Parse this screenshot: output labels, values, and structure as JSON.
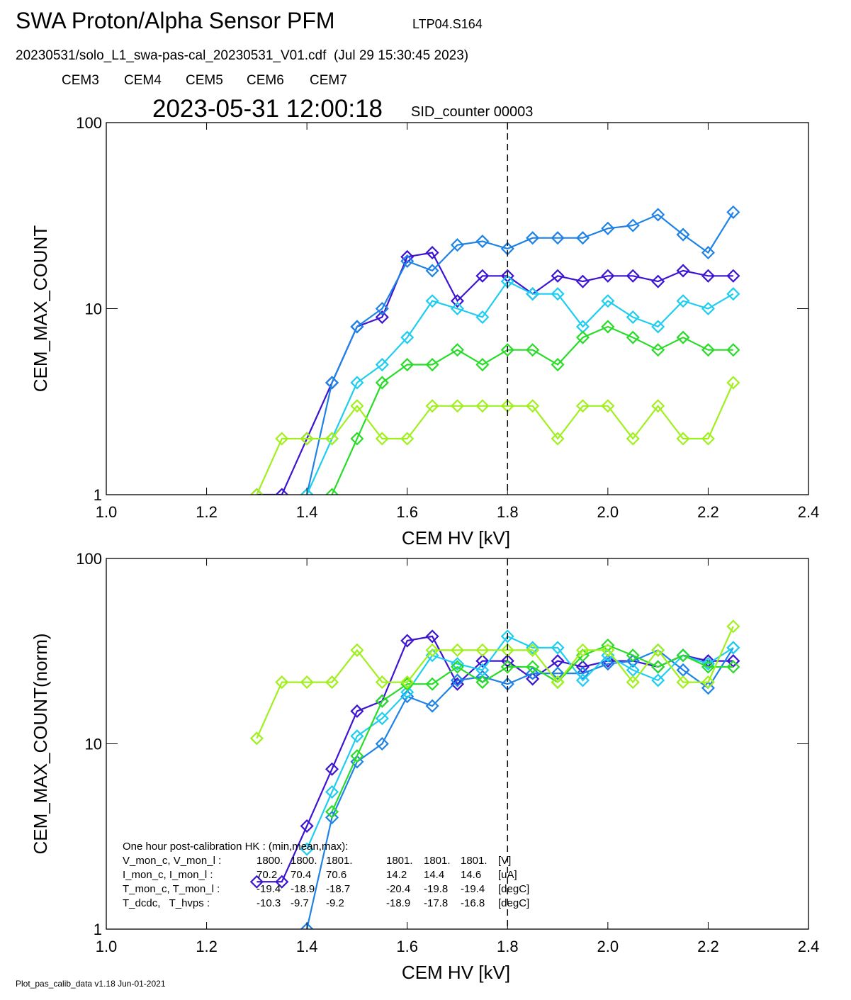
{
  "header": {
    "title": "SWA Proton/Alpha Sensor PFM",
    "test_id": "LTP04.S164",
    "file": "20230531/solo_L1_swa-pas-cal_20230531_V01.cdf  (Jul 29 15:30:45 2023)",
    "timestamp": "2023-05-31 12:00:18",
    "sid": "SID_counter 00003"
  },
  "footer": "Plot_pas_calib_data v1.18 Jun-01-2021",
  "hk_table": {
    "heading": "One hour post-calibration HK : (min,mean,max):",
    "rows": [
      [
        "V_mon_c, V_mon_l :",
        "1800.",
        "1800.",
        "1801.",
        "1801.",
        "1801.",
        "1801.",
        "[V]"
      ],
      [
        "I_mon_c, I_mon_l :",
        "70.2",
        "70.4",
        "70.6",
        "14.2",
        "14.4",
        "14.6",
        "[uA]"
      ],
      [
        "T_mon_c, T_mon_l :",
        "-19.4",
        "-18.9",
        "-18.7",
        "-20.4",
        "-19.8",
        "-19.4",
        "[degC]"
      ],
      [
        "T_dcdc,   T_hvps :",
        "-10.3",
        "-9.7",
        "-9.2",
        "-18.9",
        "-17.8",
        "-16.8",
        "[degC]"
      ]
    ]
  },
  "chart_data": [
    {
      "type": "line",
      "x_label": "CEM HV [kV]",
      "y_label": "CEM_MAX_COUNT",
      "log_y": true,
      "marker": "diamond",
      "vline": 1.8,
      "xlim": [
        1.0,
        2.4
      ],
      "ylim": [
        1,
        100
      ],
      "xticks": [
        {
          "value": 1.0,
          "label": "1.0"
        },
        {
          "value": 1.2,
          "label": "1.2"
        },
        {
          "value": 1.4,
          "label": "1.4"
        },
        {
          "value": 1.6,
          "label": "1.6"
        },
        {
          "value": 1.8,
          "label": "1.8"
        },
        {
          "value": 2.0,
          "label": "2.0"
        },
        {
          "value": 2.2,
          "label": "2.2"
        },
        {
          "value": 2.4,
          "label": "2.4"
        }
      ],
      "yticks": [
        1,
        10,
        100
      ],
      "x": [
        1.3,
        1.35,
        1.4,
        1.45,
        1.5,
        1.55,
        1.6,
        1.65,
        1.7,
        1.75,
        1.8,
        1.85,
        1.9,
        1.95,
        2.0,
        2.05,
        2.1,
        2.15,
        2.2,
        2.25
      ],
      "series": [
        {
          "name": "CEM3",
          "color": "#3c14d2",
          "values": [
            1,
            1,
            2,
            4,
            8,
            9,
            19,
            20,
            11,
            15,
            15,
            12,
            15,
            14,
            15,
            15,
            14,
            16,
            15,
            15
          ]
        },
        {
          "name": "CEM4",
          "color": "#1e82e6",
          "values": [
            null,
            null,
            1,
            4,
            8,
            10,
            18,
            16,
            22,
            23,
            21,
            24,
            24,
            24,
            27,
            28,
            32,
            25,
            20,
            33
          ]
        },
        {
          "name": "CEM5",
          "color": "#1ecdf0",
          "values": [
            null,
            null,
            1,
            2,
            4,
            5,
            7,
            11,
            10,
            9,
            14,
            12,
            12,
            8,
            11,
            9,
            8,
            11,
            10,
            12
          ]
        },
        {
          "name": "CEM6",
          "color": "#28dc28",
          "values": [
            null,
            null,
            null,
            1,
            2,
            4,
            5,
            5,
            6,
            5,
            6,
            6,
            5,
            7,
            8,
            7,
            6,
            7,
            6,
            6
          ]
        },
        {
          "name": "CEM7",
          "color": "#a0f01e",
          "values": [
            1,
            2,
            2,
            2,
            3,
            2,
            2,
            3,
            3,
            3,
            3,
            3,
            2,
            3,
            3,
            2,
            3,
            2,
            2,
            4
          ]
        }
      ]
    },
    {
      "type": "line",
      "x_label": "CEM HV [kV]",
      "y_label": "CEM_MAX_COUNT(norm)",
      "log_y": true,
      "marker": "diamond",
      "vline": 1.8,
      "xlim": [
        1.0,
        2.4
      ],
      "ylim": [
        1,
        100
      ],
      "xticks": [
        {
          "value": 1.0,
          "label": "1.0"
        },
        {
          "value": 1.2,
          "label": "1.2"
        },
        {
          "value": 1.4,
          "label": "1.4"
        },
        {
          "value": 1.6,
          "label": "1.6"
        },
        {
          "value": 1.8,
          "label": "1.8"
        },
        {
          "value": 2.0,
          "label": "2.0"
        },
        {
          "value": 2.2,
          "label": "2.2"
        },
        {
          "value": 2.4,
          "label": "2.4"
        }
      ],
      "yticks": [
        1,
        10,
        100
      ],
      "x": [
        1.3,
        1.35,
        1.4,
        1.45,
        1.5,
        1.55,
        1.6,
        1.65,
        1.7,
        1.75,
        1.8,
        1.85,
        1.9,
        1.95,
        2.0,
        2.05,
        2.1,
        2.15,
        2.2,
        2.25
      ],
      "series": [
        {
          "color": "#3c14d2",
          "values": [
            1.8,
            1.8,
            3.6,
            7.3,
            15,
            17,
            36,
            38,
            21,
            28,
            28,
            22.4,
            28,
            26,
            28,
            28,
            26,
            30,
            28,
            28
          ]
        },
        {
          "color": "#1e82e6",
          "values": [
            null,
            null,
            1,
            4,
            8,
            10,
            18,
            16,
            22,
            23,
            21,
            24,
            24,
            24,
            27,
            28,
            32,
            25,
            20,
            33
          ]
        },
        {
          "color": "#1ecdf0",
          "values": [
            null,
            null,
            2.7,
            5.5,
            11,
            13.7,
            19,
            30,
            27,
            25,
            38,
            33,
            33,
            22,
            30,
            25,
            22,
            30,
            27,
            33
          ]
        },
        {
          "color": "#28dc28",
          "values": [
            null,
            null,
            null,
            4.3,
            8.6,
            17,
            21,
            21,
            26,
            21.5,
            26,
            26,
            21.5,
            30,
            34,
            30,
            26,
            30,
            26,
            26
          ]
        },
        {
          "color": "#a0f01e",
          "values": [
            10.7,
            21.5,
            21.5,
            21.5,
            32,
            21.5,
            21.5,
            32,
            32,
            32,
            32,
            32,
            21.5,
            32,
            32,
            21.5,
            32,
            21.5,
            21.5,
            43
          ]
        }
      ]
    }
  ]
}
